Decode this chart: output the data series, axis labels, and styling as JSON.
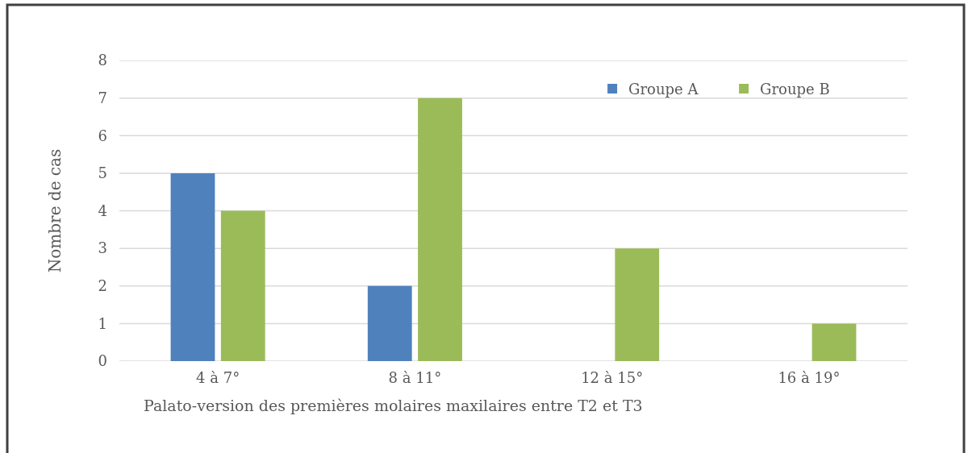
{
  "chart_data": {
    "type": "bar",
    "xlabel": "Palato-version des premières molaires maxilaires entre T2 et T3",
    "ylabel": "Nombre de cas",
    "categories": [
      "4 à 7°",
      "8 à 11°",
      "12 à 15°",
      "16 à 19°"
    ],
    "series": [
      {
        "name": "Groupe A",
        "color": "#4f81bd",
        "values": [
          5,
          2,
          0,
          0
        ]
      },
      {
        "name": "Groupe B",
        "color": "#9bbb59",
        "values": [
          4,
          7,
          3,
          1
        ]
      }
    ],
    "ylim": [
      0,
      8
    ],
    "yticks": [
      0,
      1,
      2,
      3,
      4,
      5,
      6,
      7,
      8
    ],
    "grid": "y",
    "legend": "top right"
  }
}
